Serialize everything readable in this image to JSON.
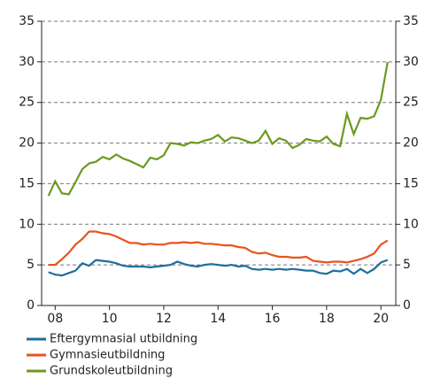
{
  "chart_data": {
    "type": "line",
    "x": [
      2007.75,
      2008,
      2008.25,
      2008.5,
      2008.75,
      2009,
      2009.25,
      2009.5,
      2009.75,
      2010,
      2010.25,
      2010.5,
      2010.75,
      2011,
      2011.25,
      2011.5,
      2011.75,
      2012,
      2012.25,
      2012.5,
      2012.75,
      2013,
      2013.25,
      2013.5,
      2013.75,
      2014,
      2014.25,
      2014.5,
      2014.75,
      2015,
      2015.25,
      2015.5,
      2015.75,
      2016,
      2016.25,
      2016.5,
      2016.75,
      2017,
      2017.25,
      2017.5,
      2017.75,
      2018,
      2018.25,
      2018.5,
      2018.75,
      2019,
      2019.25,
      2019.5,
      2019.75,
      2020,
      2020.25
    ],
    "series": [
      {
        "name": "Eftergymnasial utbildning",
        "color": "#1f6e9c",
        "values": [
          4.1,
          3.8,
          3.7,
          4.0,
          4.3,
          5.2,
          4.9,
          5.6,
          5.5,
          5.4,
          5.2,
          4.9,
          4.8,
          4.8,
          4.8,
          4.7,
          4.8,
          4.9,
          5.0,
          5.4,
          5.1,
          4.9,
          4.8,
          5.0,
          5.1,
          5.0,
          4.9,
          5.0,
          4.8,
          4.9,
          4.5,
          4.4,
          4.5,
          4.4,
          4.5,
          4.4,
          4.5,
          4.4,
          4.3,
          4.3,
          4.0,
          3.9,
          4.3,
          4.2,
          4.5,
          3.9,
          4.5,
          4.0,
          4.5,
          5.3,
          5.6
        ]
      },
      {
        "name": "Gymnasieutbildning",
        "color": "#e8531e",
        "values": [
          5.0,
          5.0,
          5.7,
          6.5,
          7.5,
          8.2,
          9.1,
          9.1,
          8.9,
          8.8,
          8.5,
          8.1,
          7.7,
          7.7,
          7.5,
          7.6,
          7.5,
          7.5,
          7.7,
          7.7,
          7.8,
          7.7,
          7.8,
          7.6,
          7.6,
          7.5,
          7.4,
          7.4,
          7.2,
          7.1,
          6.6,
          6.4,
          6.5,
          6.2,
          6.0,
          6.0,
          5.9,
          5.9,
          6.0,
          5.5,
          5.4,
          5.3,
          5.4,
          5.4,
          5.3,
          5.5,
          5.7,
          6.0,
          6.4,
          7.5,
          8.0
        ]
      },
      {
        "name": "Grundskoleutbildning",
        "color": "#6b9a1f",
        "values": [
          13.5,
          15.3,
          13.8,
          13.7,
          15.2,
          16.8,
          17.5,
          17.7,
          18.3,
          18.0,
          18.6,
          18.1,
          17.8,
          17.4,
          17.0,
          18.2,
          18.0,
          18.5,
          20.0,
          19.9,
          19.7,
          20.1,
          20.0,
          20.3,
          20.5,
          21.0,
          20.2,
          20.7,
          20.6,
          20.3,
          20.0,
          20.3,
          21.5,
          19.9,
          20.6,
          20.3,
          19.4,
          19.8,
          20.5,
          20.3,
          20.2,
          20.8,
          19.9,
          19.6,
          23.6,
          21.1,
          23.1,
          23.0,
          23.3,
          25.3,
          30.0
        ]
      }
    ],
    "xlim": [
      2007.5,
      2020.55
    ],
    "xticks": [
      {
        "value": 2008,
        "label": "08"
      },
      {
        "value": 2010,
        "label": "10"
      },
      {
        "value": 2012,
        "label": "12"
      },
      {
        "value": 2014,
        "label": "14"
      },
      {
        "value": 2016,
        "label": "16"
      },
      {
        "value": 2018,
        "label": "18"
      },
      {
        "value": 2020,
        "label": "20"
      }
    ],
    "ylim": [
      0,
      35
    ],
    "yticks": [
      0,
      5,
      10,
      15,
      20,
      25,
      30,
      35
    ],
    "y2lim": [
      0,
      35
    ],
    "y2ticks": [
      0,
      5,
      10,
      15,
      20,
      25,
      30,
      35
    ],
    "grid": true
  }
}
